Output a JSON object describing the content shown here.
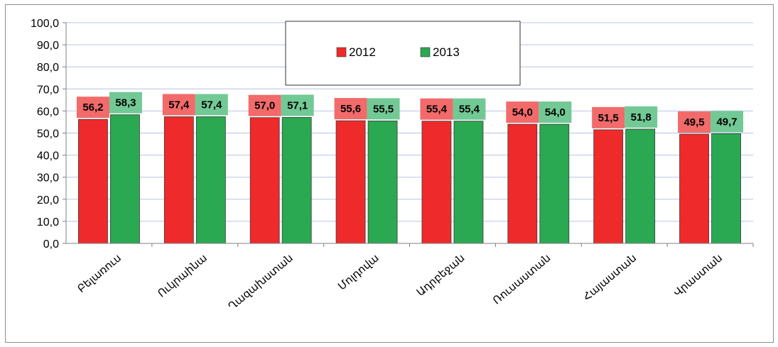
{
  "chart_data": {
    "type": "bar",
    "categories": [
      "Բելառուս",
      "Ուկրաինա",
      "Ղազախստան",
      "Մոլդովա",
      "Ադրբեջան",
      "Ռուսաստան",
      "Հայաստան",
      "Վրաստան"
    ],
    "series": [
      {
        "name": "2012",
        "color": "#ee2a2a",
        "label_bg": "#f26a6a",
        "values": [
          56.2,
          57.4,
          57.0,
          55.6,
          55.4,
          54.0,
          51.5,
          49.5
        ],
        "labels": [
          "56,2",
          "57,4",
          "57,0",
          "55,6",
          "55,4",
          "54,0",
          "51,5",
          "49,5"
        ]
      },
      {
        "name": "2013",
        "color": "#2aa852",
        "label_bg": "#72c995",
        "values": [
          58.3,
          57.4,
          57.1,
          55.5,
          55.4,
          54.0,
          51.8,
          49.7
        ],
        "labels": [
          "58,3",
          "57,4",
          "57,1",
          "55,5",
          "55,4",
          "54,0",
          "51,8",
          "49,7"
        ]
      }
    ],
    "ylim": [
      0,
      100
    ],
    "yticks": [
      "0,0",
      "10,0",
      "20,0",
      "30,0",
      "40,0",
      "50,0",
      "60,0",
      "70,0",
      "80,0",
      "90,0",
      "100,0"
    ],
    "grid": true,
    "gridline_color": "#b8c4e0",
    "legend_position": "top-center"
  }
}
